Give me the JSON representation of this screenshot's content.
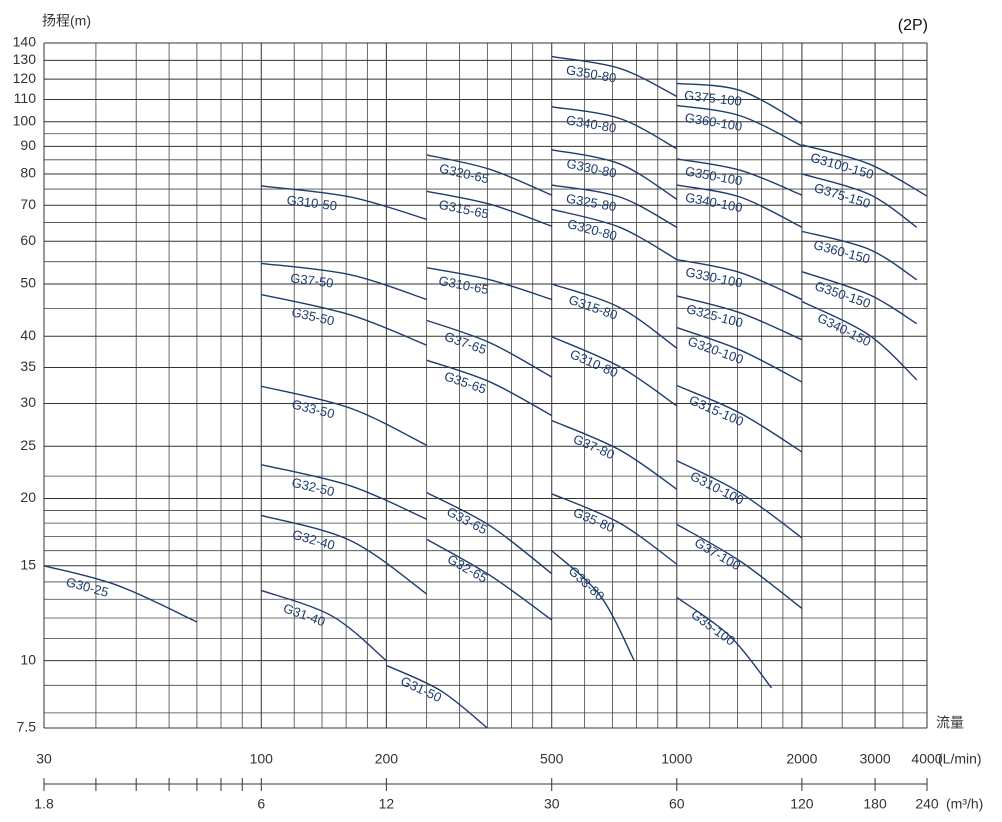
{
  "chart_data": {
    "type": "line",
    "title": "(2P)",
    "ylabel": "扬程(m)",
    "xlabel_title": "流量",
    "xlabel": "(L/min)",
    "x2label": "(m³/h)",
    "xlog": true,
    "ylog": true,
    "grid": true,
    "color": "#1d3d6e",
    "xlim": [
      30,
      4000
    ],
    "xticks": [
      30,
      100,
      200,
      500,
      1000,
      2000,
      3000,
      4000
    ],
    "xminor_ticks": [
      40,
      50,
      60,
      70,
      80,
      90,
      120,
      140,
      160,
      180,
      250,
      300,
      350,
      400,
      450,
      600,
      700,
      800,
      900,
      1200,
      1400,
      1600,
      1800,
      2500,
      3500
    ],
    "ylim": [
      7.5,
      140
    ],
    "yticks": [
      7.5,
      10,
      15,
      20,
      25,
      30,
      35,
      40,
      50,
      60,
      70,
      80,
      90,
      100,
      110,
      120,
      130,
      140
    ],
    "yminor_ticks": [
      8,
      9,
      11,
      12,
      13,
      14,
      16,
      17,
      18,
      19,
      22,
      45,
      55,
      65,
      75,
      85,
      95
    ],
    "x2lim": [
      1.8,
      240
    ],
    "x2ticks": [
      1.8,
      6,
      12,
      30,
      60,
      120,
      180,
      240
    ],
    "x2minor_ticks": [
      2.4,
      3,
      3.6,
      4.2,
      4.8,
      5.4
    ],
    "series": [
      {
        "name": "G30-25",
        "x": [
          30,
          45,
          70
        ],
        "values": [
          15,
          13.8,
          11.8
        ]
      },
      {
        "name": "G31-40",
        "x": [
          100,
          148,
          200
        ],
        "values": [
          13.5,
          12.1,
          10
        ]
      },
      {
        "name": "G31-50",
        "x": [
          200,
          270,
          350
        ],
        "values": [
          9.8,
          8.8,
          7.5
        ]
      },
      {
        "name": "G32-40",
        "x": [
          100,
          164,
          250
        ],
        "values": [
          18.6,
          16.7,
          13.3
        ]
      },
      {
        "name": "G32-50",
        "x": [
          100,
          164,
          250
        ],
        "values": [
          23.1,
          21.1,
          18.3
        ]
      },
      {
        "name": "G33-50",
        "x": [
          100,
          164,
          250
        ],
        "values": [
          32.3,
          29.4,
          25.1
        ]
      },
      {
        "name": "G35-50",
        "x": [
          100,
          164,
          250
        ],
        "values": [
          47.8,
          43.8,
          38.5
        ]
      },
      {
        "name": "G37-50",
        "x": [
          100,
          164,
          250
        ],
        "values": [
          54.6,
          52,
          46.8
        ]
      },
      {
        "name": "G310-50",
        "x": [
          100,
          164,
          250
        ],
        "values": [
          76,
          72.5,
          65.9
        ]
      },
      {
        "name": "G32-65",
        "x": [
          250,
          355,
          500
        ],
        "values": [
          16.8,
          14.4,
          11.9
        ]
      },
      {
        "name": "G33-65",
        "x": [
          250,
          355,
          500
        ],
        "values": [
          20.5,
          17.8,
          14.5
        ]
      },
      {
        "name": "G35-65",
        "x": [
          250,
          355,
          500
        ],
        "values": [
          36.1,
          32.9,
          28.5
        ]
      },
      {
        "name": "G37-65",
        "x": [
          250,
          355,
          500
        ],
        "values": [
          42.8,
          38.9,
          33.6
        ]
      },
      {
        "name": "G310-65",
        "x": [
          250,
          355,
          500
        ],
        "values": [
          53.6,
          50.9,
          46.8
        ]
      },
      {
        "name": "G315-65",
        "x": [
          250,
          355,
          500
        ],
        "values": [
          74.3,
          70.3,
          64
        ]
      },
      {
        "name": "G320-65",
        "x": [
          250,
          355,
          500
        ],
        "values": [
          86.8,
          81.6,
          73.1
        ]
      },
      {
        "name": "G33-80",
        "x": [
          500,
          654,
          790
        ],
        "values": [
          16,
          13.2,
          10
        ]
      },
      {
        "name": "G35-80",
        "x": [
          500,
          729,
          1000
        ],
        "values": [
          20.4,
          18,
          15.1
        ]
      },
      {
        "name": "G37-80",
        "x": [
          500,
          729,
          1000
        ],
        "values": [
          27.9,
          24.6,
          20.8
        ]
      },
      {
        "name": "G310-80",
        "x": [
          500,
          729,
          1000
        ],
        "values": [
          39.9,
          35.1,
          29.7
        ]
      },
      {
        "name": "G315-80",
        "x": [
          500,
          729,
          1000
        ],
        "values": [
          50,
          45.2,
          38
        ]
      },
      {
        "name": "G320-80",
        "x": [
          500,
          729,
          1000
        ],
        "values": [
          68.8,
          63.7,
          55.5
        ]
      },
      {
        "name": "G325-80",
        "x": [
          500,
          729,
          1000
        ],
        "values": [
          76.3,
          72.5,
          63.7
        ]
      },
      {
        "name": "G330-80",
        "x": [
          500,
          729,
          1000
        ],
        "values": [
          88.7,
          83.5,
          71.8
        ]
      },
      {
        "name": "G340-80",
        "x": [
          500,
          729,
          1000
        ],
        "values": [
          106.6,
          101.4,
          89.1
        ]
      },
      {
        "name": "G350-80",
        "x": [
          500,
          729,
          1000
        ],
        "values": [
          132.1,
          125.6,
          111.4
        ]
      },
      {
        "name": "G35-100",
        "x": [
          1000,
          1343,
          1690
        ],
        "values": [
          13.1,
          11.1,
          8.9
        ]
      },
      {
        "name": "G37-100",
        "x": [
          1000,
          1420,
          2000
        ],
        "values": [
          17.9,
          15.3,
          12.5
        ]
      },
      {
        "name": "G310-100",
        "x": [
          1000,
          1420,
          2000
        ],
        "values": [
          23.5,
          20.5,
          16.9
        ]
      },
      {
        "name": "G315-100",
        "x": [
          1000,
          1420,
          2000
        ],
        "values": [
          32.4,
          28.8,
          24.4
        ]
      },
      {
        "name": "G320-100",
        "x": [
          1000,
          1420,
          2000
        ],
        "values": [
          41.5,
          37.7,
          32.9
        ]
      },
      {
        "name": "G325-100",
        "x": [
          1000,
          1420,
          2000
        ],
        "values": [
          47.5,
          44.2,
          39.4
        ]
      },
      {
        "name": "G330-100",
        "x": [
          1000,
          1420,
          2000
        ],
        "values": [
          55.5,
          52.5,
          46.8
        ]
      },
      {
        "name": "G340-100",
        "x": [
          1000,
          1420,
          2000
        ],
        "values": [
          76.3,
          72.5,
          63.7
        ]
      },
      {
        "name": "G350-100",
        "x": [
          1000,
          1420,
          2000
        ],
        "values": [
          85.3,
          81.3,
          73.1
        ]
      },
      {
        "name": "G360-100",
        "x": [
          1000,
          1420,
          2000
        ],
        "values": [
          107.2,
          102.6,
          90.2
        ]
      },
      {
        "name": "G375-100",
        "x": [
          1000,
          1420,
          2000
        ],
        "values": [
          117.8,
          114.3,
          99.1
        ]
      },
      {
        "name": "G340-150",
        "x": [
          2000,
          2900,
          3780
        ],
        "values": [
          46.4,
          40.2,
          33.2
        ]
      },
      {
        "name": "G350-150",
        "x": [
          2000,
          2900,
          3780
        ],
        "values": [
          52.7,
          47.8,
          42.2
        ]
      },
      {
        "name": "G360-150",
        "x": [
          2000,
          2900,
          3780
        ],
        "values": [
          62.6,
          58,
          50.9
        ]
      },
      {
        "name": "G375-150",
        "x": [
          2000,
          2900,
          3780
        ],
        "values": [
          80,
          73.4,
          63.7
        ]
      },
      {
        "name": "G3100-150",
        "x": [
          2000,
          2900,
          4000
        ],
        "values": [
          90.6,
          83.5,
          72.8
        ]
      }
    ]
  }
}
